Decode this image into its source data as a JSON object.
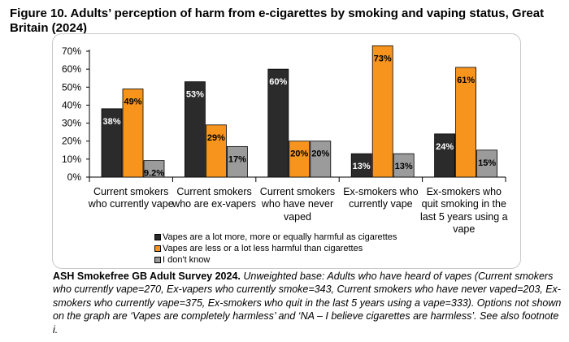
{
  "figure": {
    "title": "Figure 10. Adults’ perception of harm from e-cigarettes by smoking and vaping status, Great Britain (2024)"
  },
  "colors": {
    "series1": "#2b2b2b",
    "series2": "#f7941d",
    "series3": "#9b9b9b",
    "border": "#c8c8c8"
  },
  "chart_data": {
    "type": "bar",
    "categories": [
      "Current smokers who currently vape",
      "Current smokers who are ex-vapers",
      "Current smokers who have never vaped",
      "Ex-smokers who currently vape",
      "Ex-smokers who quit smoking in the last 5 years using a vape"
    ],
    "series": [
      {
        "name": "Vapes are a lot more, more or equally harmful as cigarettes",
        "values": [
          38,
          53,
          60,
          13,
          24
        ],
        "labels": [
          "38%",
          "53%",
          "60%",
          "13%",
          "24%"
        ]
      },
      {
        "name": "Vapes are less or a lot less harmful than cigarettes",
        "values": [
          49,
          29,
          20,
          73,
          61
        ],
        "labels": [
          "49%",
          "29%",
          "20%",
          "73%",
          "61%"
        ]
      },
      {
        "name": "I don't know",
        "values": [
          9.2,
          17,
          20,
          13,
          15
        ],
        "labels": [
          "9.2%",
          "17%",
          "20%",
          "13%",
          "15%"
        ]
      }
    ],
    "yticks": [
      "0%",
      "10%",
      "20%",
      "30%",
      "40%",
      "50%",
      "60%",
      "70%"
    ],
    "ylim": [
      0,
      70
    ],
    "grid": false,
    "legend": "bottom"
  },
  "source": {
    "bold": "ASH Smokefree GB Adult Survey 2024.",
    "italic": " Unweighted base: Adults who have heard of vapes (Current smokers who currently vape=270, Ex-vapers who currently smoke=343, Current smokers who have never vaped=203, Ex-smokers who currently vape=375, Ex-smokers who quit in the last 5 years using a vape=333). Options not shown on the graph are ‘Vapes are completely harmless’ and ‘NA – I believe cigarettes are harmless’. See also footnote i."
  }
}
